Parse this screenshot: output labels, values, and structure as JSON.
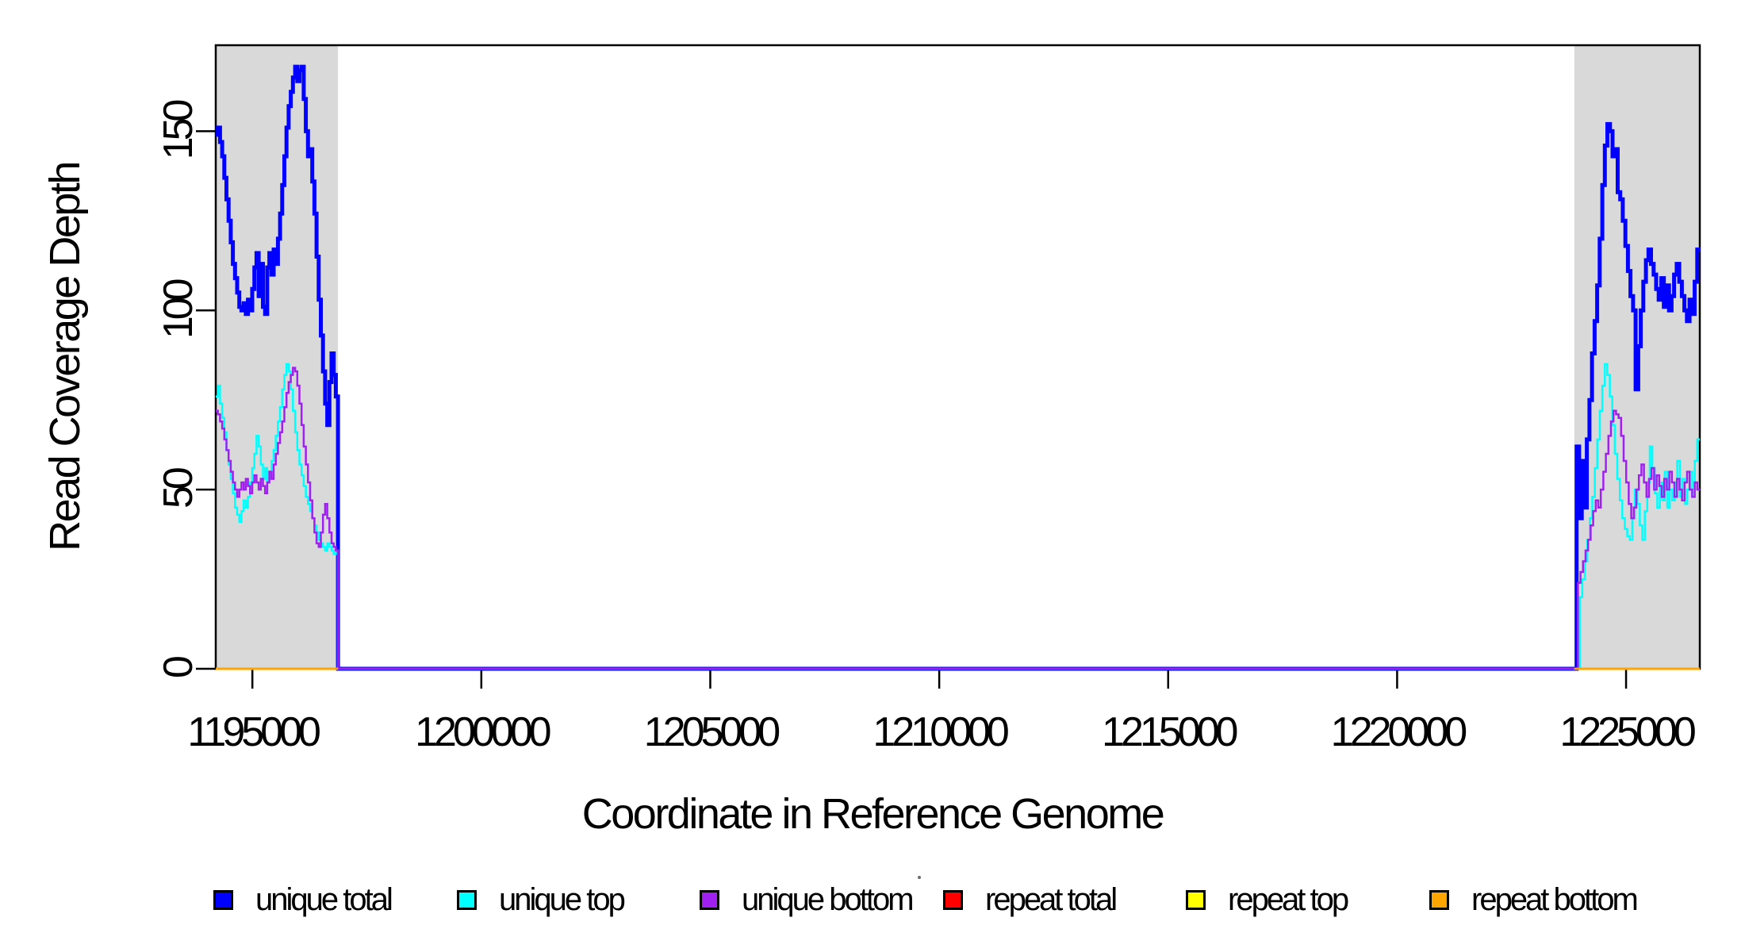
{
  "figure": {
    "background": "#FFFFFF",
    "plot_border_color": "#000000"
  },
  "chart_data": {
    "type": "line",
    "subtype": "step",
    "title": "",
    "xlabel": "Coordinate in Reference Genome",
    "ylabel": "Read Coverage Depth",
    "xlim": [
      1194200,
      1226610
    ],
    "ylim": [
      0,
      174
    ],
    "grid": false,
    "legend_position": "bottom",
    "xticks": {
      "values": [
        1195000,
        1200000,
        1205000,
        1210000,
        1215000,
        1220000,
        1225000
      ],
      "labels": [
        "1195000",
        "1200000",
        "1205000",
        "1210000",
        "1215000",
        "1220000",
        "1225000"
      ]
    },
    "yticks": {
      "values": [
        0,
        50,
        100,
        150
      ],
      "labels": [
        "0",
        "50",
        "100",
        "150"
      ]
    },
    "shaded_regions": [
      {
        "name": "left-repeat-flank",
        "x0": 1194200,
        "x1": 1196870,
        "color": "#D9D9D9"
      },
      {
        "name": "right-repeat-flank",
        "x0": 1223870,
        "x1": 1226610,
        "color": "#D9D9D9"
      }
    ],
    "series": [
      {
        "name": "unique total",
        "color": "#0000FF",
        "line_width": 5,
        "segments": [
          {
            "x0": 1194200,
            "x1": 1196870,
            "values": [
              149,
              151,
              147,
              143,
              137,
              131,
              125,
              119,
              113,
              109,
              105,
              101,
              100,
              102,
              99,
              103,
              100,
              106,
              112,
              116,
              104,
              113,
              101,
              99,
              112,
              116,
              110,
              117,
              113,
              120,
              127,
              135,
              143,
              151,
              157,
              161,
              165,
              168,
              164,
              167,
              168,
              159,
              150,
              143,
              145,
              136,
              127,
              115,
              103,
              93,
              83,
              74,
              68,
              80,
              88,
              82,
              76
            ]
          },
          {
            "x0": 1196870,
            "x1": 1223920,
            "values": [
              0
            ]
          },
          {
            "x0": 1223920,
            "x1": 1226610,
            "values": [
              62,
              42,
              58,
              45,
              64,
              75,
              88,
              97,
              107,
              120,
              135,
              146,
              152,
              150,
              143,
              145,
              133,
              131,
              125,
              118,
              111,
              104,
              100,
              78,
              90,
              100,
              108,
              114,
              117,
              113,
              110,
              106,
              103,
              109,
              101,
              107,
              100,
              104,
              110,
              113,
              108,
              104,
              100,
              97,
              103,
              99,
              108,
              117
            ]
          }
        ]
      },
      {
        "name": "unique top",
        "color": "#00FFFF",
        "line_width": 2.5,
        "segments": [
          {
            "x0": 1194200,
            "x1": 1196870,
            "values": [
              76,
              79,
              74,
              70,
              66,
              61,
              57,
              53,
              49,
              45,
              43,
              41,
              44,
              47,
              45,
              48,
              52,
              56,
              60,
              65,
              62,
              57,
              53,
              56,
              52,
              55,
              58,
              61,
              65,
              69,
              73,
              78,
              82,
              85,
              83,
              78,
              72,
              66,
              61,
              57,
              54,
              51,
              48,
              46,
              44,
              42,
              40,
              38,
              36,
              35,
              34,
              33,
              35,
              34,
              33,
              32,
              33
            ]
          },
          {
            "x0": 1196870,
            "x1": 1223990,
            "values": [
              0
            ]
          },
          {
            "x0": 1223990,
            "x1": 1226610,
            "values": [
              20,
              25,
              30,
              36,
              42,
              48,
              56,
              64,
              72,
              79,
              85,
              82,
              76,
              68,
              60,
              53,
              47,
              42,
              39,
              37,
              36,
              42,
              50,
              46,
              40,
              36,
              44,
              52,
              62,
              56,
              49,
              45,
              52,
              47,
              55,
              45,
              50,
              47,
              52,
              58,
              48,
              53,
              46,
              50,
              55,
              48,
              58,
              64
            ]
          }
        ]
      },
      {
        "name": "unique bottom",
        "color": "#A020F0",
        "line_width": 2.5,
        "segments": [
          {
            "x0": 1194200,
            "x1": 1196870,
            "values": [
              72,
              71,
              69,
              67,
              64,
              61,
              58,
              55,
              52,
              50,
              48,
              50,
              52,
              50,
              53,
              51,
              49,
              52,
              54,
              52,
              50,
              53,
              51,
              49,
              52,
              55,
              53,
              57,
              60,
              63,
              66,
              69,
              73,
              77,
              80,
              82,
              84,
              83,
              79,
              74,
              68,
              62,
              57,
              52,
              47,
              42,
              38,
              35,
              34,
              38,
              43,
              46,
              42,
              38,
              35,
              34,
              33
            ]
          },
          {
            "x0": 1196870,
            "x1": 1223950,
            "values": [
              0
            ]
          },
          {
            "x0": 1223950,
            "x1": 1226610,
            "values": [
              24,
              27,
              30,
              33,
              36,
              40,
              44,
              47,
              45,
              50,
              55,
              60,
              65,
              69,
              72,
              71,
              70,
              65,
              58,
              52,
              46,
              42,
              45,
              50,
              54,
              57,
              52,
              48,
              53,
              56,
              50,
              54,
              51,
              48,
              53,
              50,
              55,
              52,
              48,
              53,
              50,
              47,
              52,
              55,
              50,
              48,
              52,
              50
            ]
          }
        ]
      },
      {
        "name": "repeat total",
        "color": "#FF0000",
        "line_width": 2.5,
        "segments": [
          {
            "x0": 1194200,
            "x1": 1196870,
            "values": [
              0
            ]
          },
          {
            "x0": 1223870,
            "x1": 1226610,
            "values": [
              0
            ]
          }
        ]
      },
      {
        "name": "repeat top",
        "color": "#FFFF00",
        "line_width": 2.5,
        "segments": [
          {
            "x0": 1194200,
            "x1": 1196870,
            "values": [
              0
            ]
          },
          {
            "x0": 1223870,
            "x1": 1226610,
            "values": [
              0
            ]
          }
        ]
      },
      {
        "name": "repeat bottom",
        "color": "#FFA500",
        "line_width": 3,
        "segments": [
          {
            "x0": 1194200,
            "x1": 1196870,
            "values": [
              0
            ]
          },
          {
            "x0": 1223870,
            "x1": 1226610,
            "values": [
              0
            ]
          }
        ]
      }
    ],
    "legend": {
      "entries": [
        {
          "label": "unique total",
          "color": "#0000FF"
        },
        {
          "label": "unique top",
          "color": "#00FFFF"
        },
        {
          "label": "unique bottom",
          "color": "#A020F0"
        },
        {
          "label": "repeat total",
          "color": "#FF0000"
        },
        {
          "label": "repeat top",
          "color": "#FFFF00"
        },
        {
          "label": "repeat bottom",
          "color": "#FFA500"
        }
      ]
    }
  }
}
